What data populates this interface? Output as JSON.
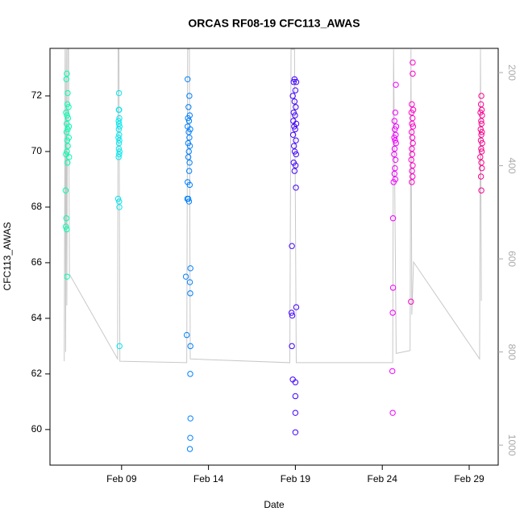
{
  "chart_data": {
    "type": "scatter",
    "title": "ORCAS RF08-19 CFC113_AWAS",
    "xlabel": "Date",
    "ylabel": "CFC113_AWAS",
    "xlim": [
      4.88,
      30.67
    ],
    "xticks": [
      {
        "value": 9,
        "label": "Feb 09"
      },
      {
        "value": 14,
        "label": "Feb 14"
      },
      {
        "value": 19,
        "label": "Feb 19"
      },
      {
        "value": 24,
        "label": "Feb 24"
      },
      {
        "value": 29,
        "label": "Feb 29"
      }
    ],
    "ylim": [
      58.72,
      73.71
    ],
    "yticks": [
      60,
      62,
      64,
      66,
      68,
      70,
      72
    ],
    "y2lim": [
      1043,
      148
    ],
    "y2ticks": [
      200,
      400,
      600,
      800,
      1000
    ],
    "series": [
      {
        "color": "#00ffb0",
        "x": [
          5.85,
          5.82,
          5.9,
          5.88,
          5.95,
          5.8,
          5.86,
          5.92,
          5.84,
          5.97,
          5.9,
          5.83,
          5.96,
          5.87,
          5.91,
          5.85,
          5.8,
          5.98,
          5.89,
          5.78,
          5.82,
          5.79,
          5.84,
          5.86
        ],
        "values": [
          72.8,
          72.6,
          72.1,
          71.7,
          71.6,
          71.4,
          71.3,
          71.2,
          71.0,
          70.9,
          70.8,
          70.7,
          70.5,
          70.4,
          70.2,
          70.0,
          69.9,
          69.8,
          69.6,
          68.6,
          67.6,
          67.3,
          67.2,
          65.5
        ]
      },
      {
        "color": "#00e8f0",
        "x": [
          8.85,
          8.86,
          8.84,
          8.87,
          8.83,
          8.85,
          8.88,
          8.84,
          8.86,
          8.82,
          8.87,
          8.85,
          8.84,
          8.88,
          8.86,
          8.83,
          8.8,
          8.86,
          8.87,
          8.88
        ],
        "values": [
          72.1,
          71.5,
          71.5,
          71.2,
          71.1,
          71.0,
          70.9,
          70.8,
          70.6,
          70.5,
          70.4,
          70.3,
          70.1,
          70.0,
          69.9,
          69.8,
          68.3,
          68.2,
          68.0,
          63.0
        ]
      },
      {
        "color": "#0080ff",
        "x": [
          12.8,
          12.9,
          12.85,
          12.92,
          12.82,
          12.88,
          12.8,
          12.95,
          12.86,
          12.9,
          12.83,
          12.93,
          12.87,
          12.84,
          12.91,
          12.89,
          12.8,
          12.92,
          12.78,
          12.84,
          12.88,
          12.96,
          12.7,
          12.93,
          12.95,
          12.75,
          12.96,
          12.95,
          12.96,
          12.95,
          12.93
        ],
        "values": [
          72.6,
          72.0,
          71.6,
          71.3,
          71.2,
          71.1,
          70.9,
          70.8,
          70.7,
          70.5,
          70.3,
          70.2,
          70.0,
          69.8,
          69.6,
          69.3,
          68.9,
          68.8,
          68.3,
          68.3,
          68.2,
          65.8,
          65.5,
          65.3,
          64.9,
          63.4,
          63.0,
          62.0,
          60.4,
          59.7,
          59.3
        ]
      },
      {
        "color": "#4000ff",
        "x": [
          18.95,
          19.05,
          18.9,
          19.0,
          18.85,
          18.95,
          19.02,
          18.9,
          18.98,
          18.88,
          19.05,
          18.93,
          18.99,
          18.87,
          19.03,
          18.92,
          18.96,
          19.04,
          18.9,
          19.01,
          18.95,
          19.03,
          18.8,
          19.05,
          18.78,
          18.82,
          18.8,
          18.85,
          19.0,
          19.0,
          19.0,
          19.0
        ],
        "values": [
          72.6,
          72.5,
          72.5,
          72.2,
          72.0,
          71.8,
          71.6,
          71.4,
          71.3,
          71.1,
          71.0,
          70.9,
          70.8,
          70.6,
          70.4,
          70.2,
          70.0,
          69.9,
          69.6,
          69.5,
          69.3,
          68.7,
          66.6,
          64.4,
          64.2,
          64.1,
          63.0,
          61.8,
          61.7,
          61.2,
          60.6,
          59.9
        ]
      },
      {
        "color": "#f000ff",
        "x": [
          24.78,
          24.75,
          24.7,
          24.8,
          24.72,
          24.77,
          24.69,
          24.74,
          24.79,
          24.71,
          24.68,
          24.76,
          24.73,
          24.7,
          24.75,
          24.65,
          24.62,
          24.62,
          24.6,
          24.58,
          24.6
        ],
        "values": [
          72.4,
          71.4,
          71.1,
          70.9,
          70.8,
          70.6,
          70.5,
          70.4,
          70.3,
          70.1,
          69.9,
          69.7,
          69.4,
          69.2,
          69.0,
          68.9,
          67.6,
          65.1,
          64.2,
          62.1,
          60.6
        ]
      },
      {
        "color": "#ff00c8",
        "x": [
          25.75,
          25.75,
          25.7,
          25.78,
          25.68,
          25.74,
          25.71,
          25.77,
          25.69,
          25.73,
          25.76,
          25.7,
          25.72,
          25.67,
          25.75,
          25.71,
          25.74,
          25.7,
          25.65
        ],
        "values": [
          73.2,
          72.8,
          71.7,
          71.5,
          71.4,
          71.2,
          71.0,
          70.9,
          70.7,
          70.5,
          70.3,
          70.1,
          69.9,
          69.7,
          69.5,
          69.3,
          69.1,
          68.9,
          64.6
        ]
      },
      {
        "color": "#ff0090",
        "x": [
          29.7,
          29.68,
          29.72,
          29.65,
          29.74,
          29.69,
          29.71,
          29.66,
          29.73,
          29.7,
          29.67,
          29.75,
          29.69,
          29.72,
          29.64,
          29.7,
          29.73,
          29.68,
          29.7
        ],
        "values": [
          72.0,
          71.7,
          71.5,
          71.4,
          71.3,
          71.1,
          71.0,
          70.8,
          70.7,
          70.6,
          70.4,
          70.3,
          70.1,
          70.0,
          69.8,
          69.6,
          69.4,
          69.1,
          68.6
        ]
      },
      {
        "type": "line",
        "axis": "y2",
        "color": "#c8c8c8",
        "x": [
          5.7,
          5.75,
          5.78,
          5.82,
          5.85,
          5.9,
          5.95,
          6.0,
          8.77,
          8.8,
          8.85,
          8.9,
          12.75,
          12.8,
          12.9,
          12.95,
          18.68,
          18.75,
          18.85,
          18.95,
          19.05,
          24.6,
          24.65,
          24.8,
          25.6,
          25.65,
          25.7,
          25.8,
          29.6,
          29.65,
          29.7
        ],
        "values": [
          820,
          150,
          800,
          150,
          700,
          150,
          150,
          633,
          815,
          150,
          150,
          820,
          823,
          150,
          150,
          815,
          823,
          150,
          150,
          150,
          823,
          823,
          150,
          803,
          797,
          150,
          720,
          607,
          815,
          150,
          690
        ]
      }
    ]
  }
}
